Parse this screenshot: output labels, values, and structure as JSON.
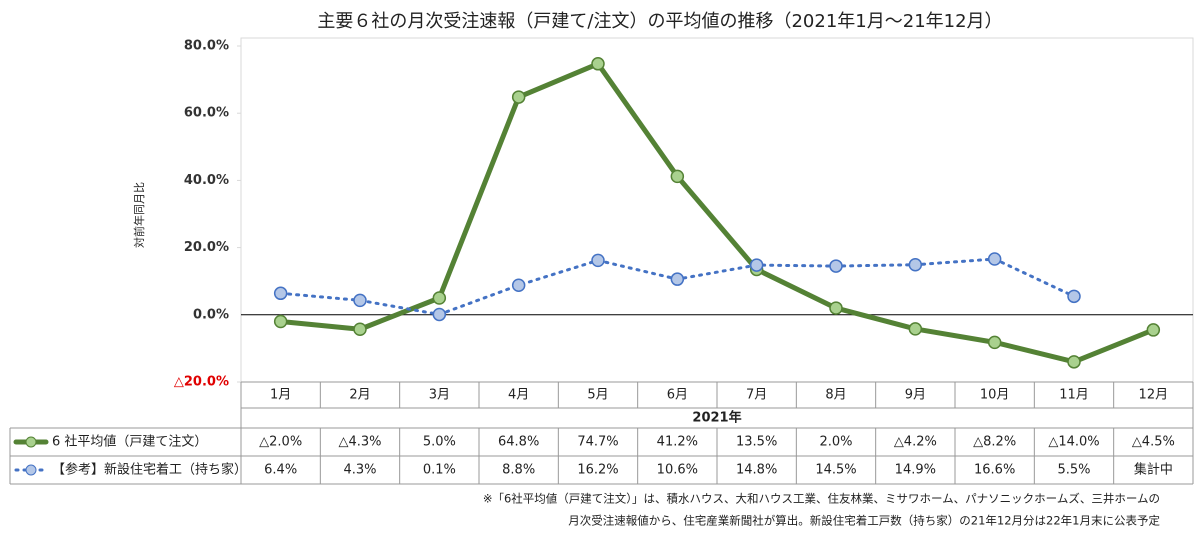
{
  "chart_data": {
    "type": "line",
    "title": "主要６社の月次受注速報（戸建て/注文）の平均値の推移（2021年1月～21年12月）",
    "y_label": "対前年同月比",
    "x_label": "2021年",
    "categories": [
      "1月",
      "2月",
      "3月",
      "4月",
      "5月",
      "6月",
      "7月",
      "8月",
      "9月",
      "10月",
      "11月",
      "12月"
    ],
    "series": [
      {
        "name": "6 社平均値（戸建て注文）",
        "color": "#548235",
        "style": "solid",
        "values": [
          -2.0,
          -4.3,
          5.0,
          64.8,
          74.7,
          41.2,
          13.5,
          2.0,
          -4.2,
          -8.2,
          -14.0,
          -4.5
        ],
        "value_labels": [
          "△2.0%",
          "△4.3%",
          "5.0%",
          "64.8%",
          "74.7%",
          "41.2%",
          "13.5%",
          "2.0%",
          "△4.2%",
          "△8.2%",
          "△14.0%",
          "△4.5%"
        ]
      },
      {
        "name": "【参考】新設住宅着工（持ち家）",
        "color": "#4472c4",
        "style": "dotted",
        "values": [
          6.4,
          4.3,
          0.1,
          8.8,
          16.2,
          10.6,
          14.8,
          14.5,
          14.9,
          16.6,
          5.5,
          null
        ],
        "value_labels": [
          "6.4%",
          "4.3%",
          "0.1%",
          "8.8%",
          "16.2%",
          "10.6%",
          "14.8%",
          "14.5%",
          "14.9%",
          "16.6%",
          "5.5%",
          "集計中"
        ]
      }
    ],
    "ylim": [
      -20,
      80
    ],
    "yticks": [
      {
        "value": 80,
        "label": "80.0%"
      },
      {
        "value": 60,
        "label": "60.0%"
      },
      {
        "value": 40,
        "label": "40.0%"
      },
      {
        "value": 20,
        "label": "20.0%"
      },
      {
        "value": 0,
        "label": "0.0%"
      },
      {
        "value": -20,
        "label": "△20.0%",
        "color": "#e00000"
      }
    ],
    "grid": false,
    "notes": [
      "※「6社平均値（戸建て注文）」は、積水ハウス、大和ハウス工業、住友林業、ミサワホーム、パナソニックホームズ、三井ホームの",
      "月次受注速報値から、住宅産業新聞社が算出。新設住宅着工戸数（持ち家）の21年12月分は22年1月末に公表予定"
    ]
  }
}
